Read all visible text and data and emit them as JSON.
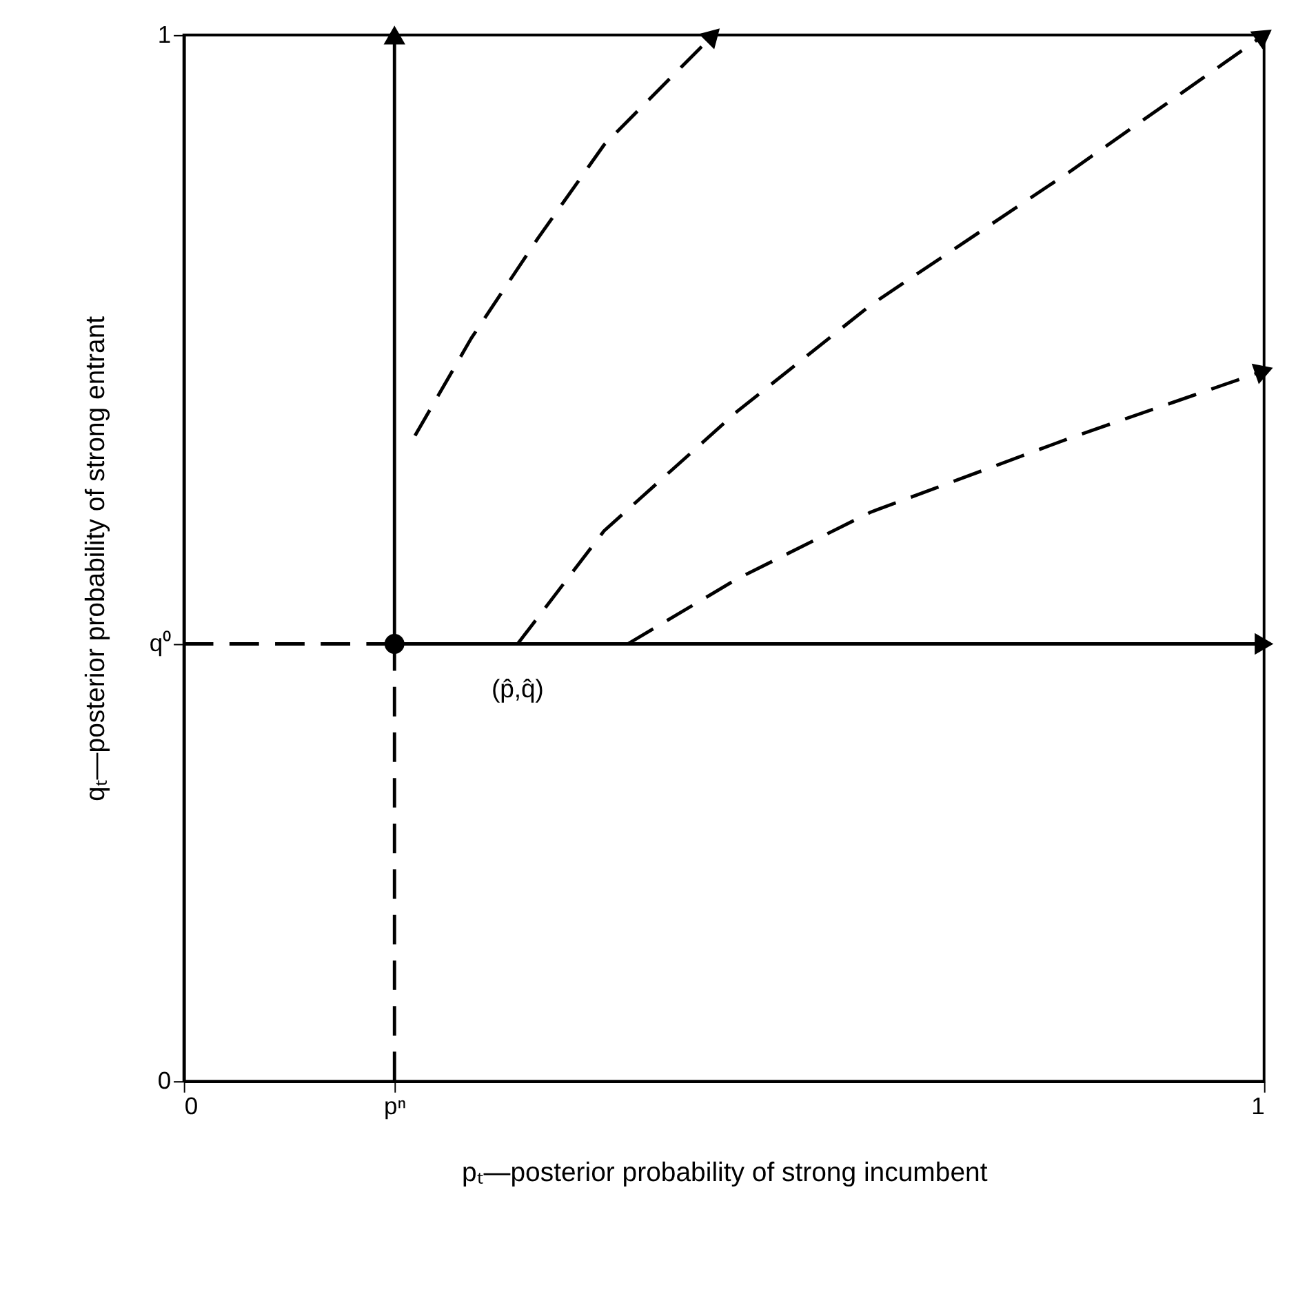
{
  "chart_data": {
    "type": "line",
    "xlabel": "pₜ—posterior probability of strong incumbent",
    "ylabel": "qₜ—posterior probability of strong entrant",
    "xlim": [
      0,
      1
    ],
    "ylim": [
      0,
      1
    ],
    "xticks": [
      0,
      {
        "value": 0.195,
        "label": "pⁿ"
      },
      1
    ],
    "yticks": [
      0,
      {
        "value": 0.418,
        "label": "q⁰"
      },
      1
    ],
    "grid": false,
    "series": [
      {
        "color": "#000000",
        "line_style": "dashed",
        "x": [
          0,
          0.195
        ],
        "values": [
          0.418,
          0.418
        ]
      },
      {
        "color": "#000000",
        "line_style": "dashed",
        "x": [
          0.195,
          0.195
        ],
        "values": [
          0,
          0.418
        ]
      },
      {
        "color": "#000000",
        "line_style": "solid",
        "x": [
          0.195,
          0.195
        ],
        "values": [
          0.418,
          1
        ]
      },
      {
        "color": "#000000",
        "line_style": "solid",
        "x": [
          0.195,
          1
        ],
        "values": [
          0.418,
          0.418
        ]
      },
      {
        "color": "#000000",
        "line_style": "dashed",
        "x": [
          0.214,
          0.266,
          0.328,
          0.389,
          0.49
        ],
        "values": [
          0.617,
          0.71,
          0.806,
          0.895,
          1
        ]
      },
      {
        "color": "#000000",
        "line_style": "dashed",
        "x": [
          0.309,
          0.389,
          0.512,
          0.636,
          0.821,
          1
        ],
        "values": [
          0.418,
          0.526,
          0.64,
          0.742,
          0.87,
          1
        ]
      },
      {
        "color": "#000000",
        "line_style": "dashed",
        "x": [
          0.411,
          0.512,
          0.636,
          0.821,
          1
        ],
        "values": [
          0.418,
          0.48,
          0.544,
          0.615,
          0.679
        ]
      },
      {
        "type": "scatter",
        "color": "#000000",
        "marker": "circle",
        "x": [
          0.195
        ],
        "values": [
          0.418
        ]
      }
    ],
    "annotations": [
      {
        "text": "(p̂,q̂)",
        "x": 0.309,
        "y": 0.418
      }
    ]
  }
}
